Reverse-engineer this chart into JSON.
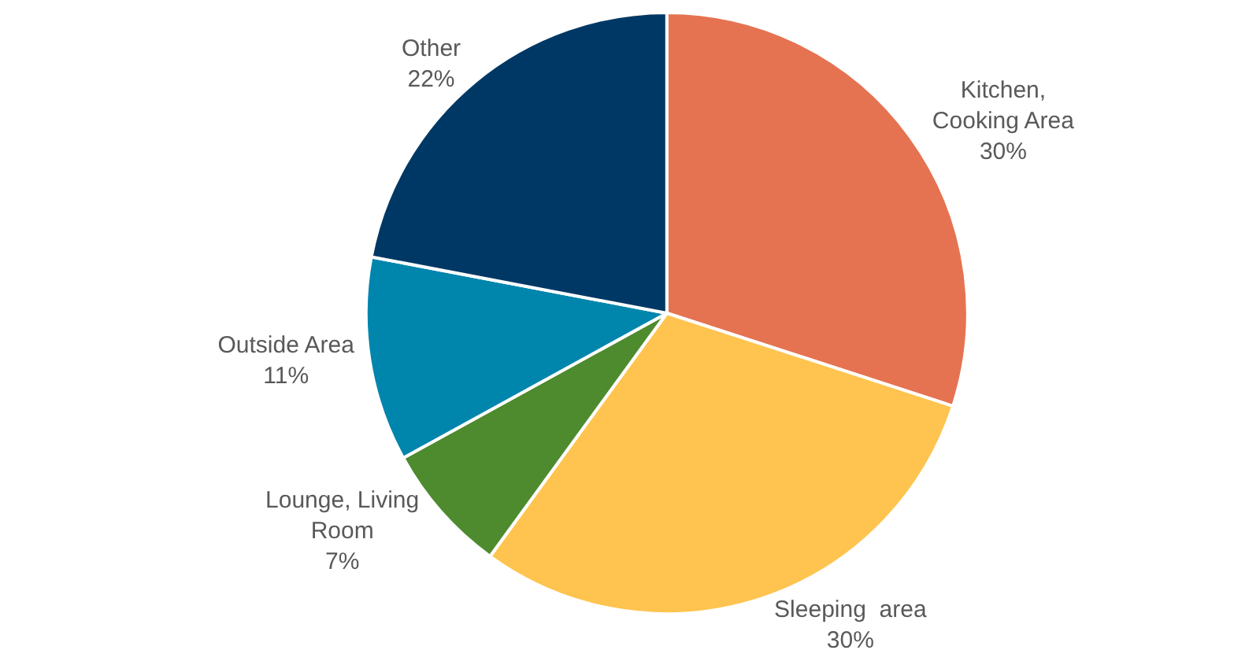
{
  "chart_data": {
    "type": "pie",
    "categories": [
      "Kitchen,\nCooking Area",
      "Sleeping  area",
      "Lounge, Living\nRoom",
      "Outside Area",
      "Other"
    ],
    "values": [
      30,
      30,
      7,
      11,
      22
    ],
    "value_labels": [
      "30%",
      "30%",
      "7%",
      "11%",
      "22%"
    ],
    "colors": [
      "#e57351",
      "#fec44f",
      "#4e8a2e",
      "#0085ad",
      "#003865"
    ],
    "legend": false
  }
}
